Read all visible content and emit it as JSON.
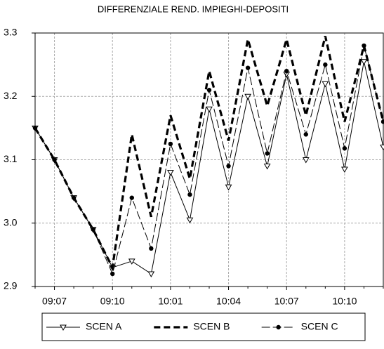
{
  "chart_data": {
    "type": "line",
    "title": "DIFFERENZIALE REND. IMPIEGHI-DEPOSITI",
    "categories": [
      null,
      "09:07",
      null,
      null,
      "09:10",
      null,
      null,
      "10:01",
      null,
      null,
      "10:04",
      null,
      null,
      "10:07",
      null,
      null,
      "10:10",
      null,
      null
    ],
    "series": [
      {
        "name": "SCEN A",
        "color": "#000000",
        "line_style": "solid",
        "marker": "triangle",
        "values": [
          3.15,
          3.1,
          3.04,
          2.99,
          2.93,
          2.94,
          2.92,
          3.08,
          3.005,
          3.18,
          3.057,
          3.2,
          3.09,
          3.235,
          3.1,
          3.22,
          3.085,
          3.255,
          3.12
        ]
      },
      {
        "name": "SCEN B",
        "color": "#000000",
        "line_style": "bold-dashed",
        "marker": "none",
        "values": [
          3.15,
          3.1,
          3.04,
          2.99,
          2.93,
          3.14,
          3.01,
          3.17,
          3.07,
          3.24,
          3.13,
          3.29,
          3.185,
          3.29,
          3.17,
          3.295,
          3.16,
          3.28,
          3.16
        ]
      },
      {
        "name": "SCEN C",
        "color": "#000000",
        "line_style": "dashed",
        "marker": "circle",
        "values": [
          3.15,
          3.1,
          3.04,
          2.99,
          2.92,
          3.04,
          2.96,
          3.125,
          3.045,
          3.21,
          3.09,
          3.245,
          3.11,
          3.24,
          3.14,
          3.25,
          3.118,
          3.28,
          3.16
        ]
      }
    ],
    "ylim": [
      2.9,
      3.3
    ],
    "yticks": [
      2.9,
      {
        "value": 3,
        "label": "3.0"
      },
      3.1,
      3.2,
      3.3
    ],
    "grid": true,
    "legend": "bottom"
  }
}
